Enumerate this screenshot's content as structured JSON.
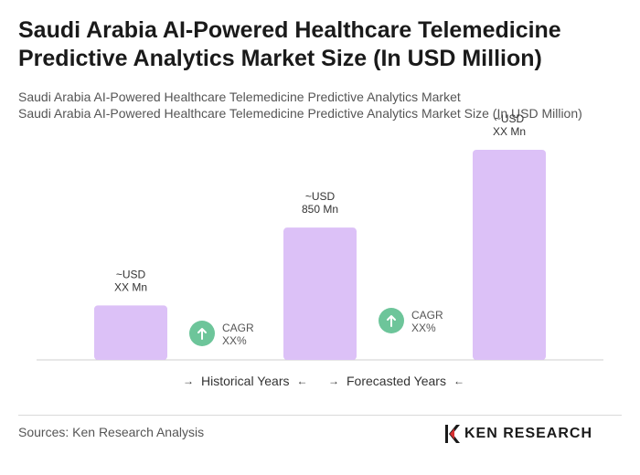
{
  "header": {
    "title": "Saudi Arabia AI-Powered Healthcare Telemedicine Predictive Analytics Market Size (In USD Million)",
    "subtitle_1": "Saudi Arabia AI-Powered Healthcare Telemedicine Predictive Analytics Market",
    "subtitle_2": "Saudi Arabia AI-Powered Healthcare Telemedicine Predictive Analytics Market Size (In USD Million)"
  },
  "chart_data": {
    "type": "bar",
    "categories": [
      "",
      "",
      ""
    ],
    "values": [
      350,
      850,
      1350
    ],
    "value_labels": [
      [
        "~USD",
        "XX Mn"
      ],
      [
        "~USD",
        "850 Mn"
      ],
      [
        "~USD",
        "XX Mn"
      ]
    ],
    "cagr": [
      {
        "label": "CAGR",
        "value": "XX%"
      },
      {
        "label": "CAGR",
        "value": "XX%"
      }
    ],
    "legend": [
      "Historical Years",
      "Forecasted Years"
    ],
    "ylim": [
      0,
      1350
    ],
    "grid": false,
    "bar_color": "#dcc1f7",
    "cagr_color": "#6dc59a"
  },
  "footer": {
    "source": "Sources: Ken Research Analysis",
    "logo_text": "KEN RESEARCH",
    "arrow_right": "→",
    "arrow_left": "←"
  }
}
